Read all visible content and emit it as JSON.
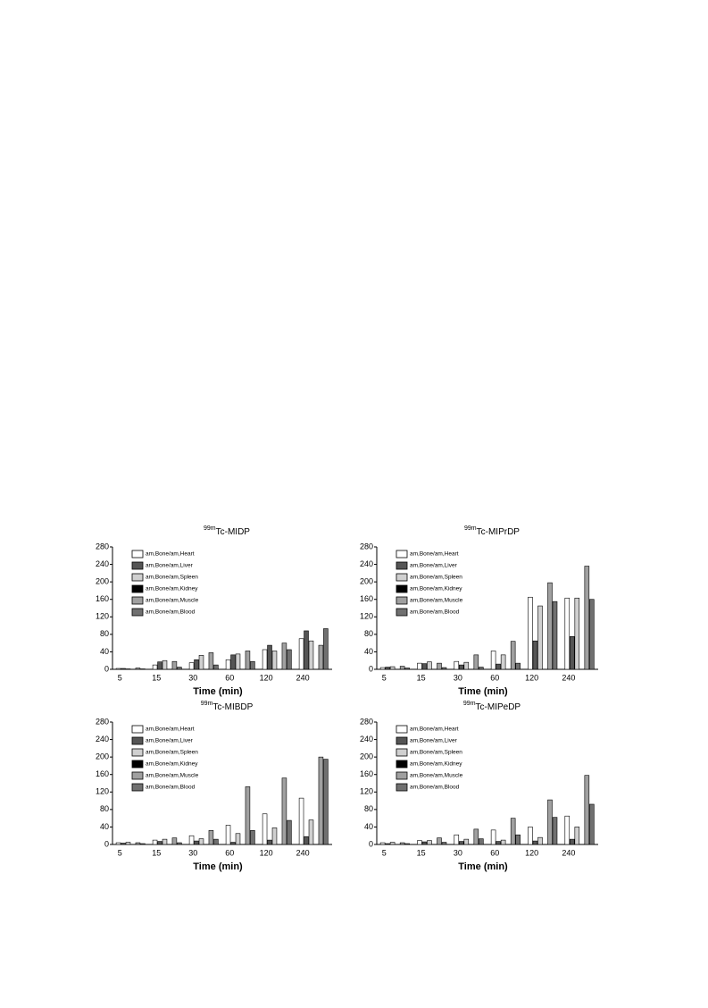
{
  "chart_data": [
    {
      "type": "bar",
      "title_sup": "99m",
      "title": "Tc-MIDP",
      "x_label": "Time (min)",
      "categories": [
        "5",
        "15",
        "30",
        "60",
        "120",
        "240"
      ],
      "ylim": [
        0,
        280
      ],
      "yticks": [
        0,
        40,
        80,
        120,
        160,
        200,
        240,
        280
      ],
      "series": [
        {
          "name": "am,Bone/am,Heart",
          "color": "#ffffff",
          "values": [
            2,
            10,
            15,
            22,
            45,
            70
          ]
        },
        {
          "name": "am,Bone/am,Liver",
          "color": "#555555",
          "values": [
            2,
            17,
            22,
            33,
            55,
            88
          ]
        },
        {
          "name": "am,Bone/am,Spleen",
          "color": "#d0d0d0",
          "values": [
            1,
            20,
            32,
            35,
            42,
            65
          ]
        },
        {
          "name": "am,Bone/am,Kidney",
          "color": "#000000",
          "values": [
            0,
            0,
            0,
            0,
            0,
            0
          ]
        },
        {
          "name": "am,Bone/am,Muscle",
          "color": "#a0a0a0",
          "values": [
            3,
            18,
            38,
            42,
            60,
            55
          ]
        },
        {
          "name": "am,Bone/am,Blood",
          "color": "#707070",
          "values": [
            1,
            5,
            10,
            18,
            45,
            93
          ]
        }
      ]
    },
    {
      "type": "bar",
      "title_sup": "99m",
      "title": "Tc-MIPrDP",
      "x_label": "Time (min)",
      "categories": [
        "5",
        "15",
        "30",
        "60",
        "120",
        "240"
      ],
      "ylim": [
        0,
        280
      ],
      "yticks": [
        0,
        40,
        80,
        120,
        160,
        200,
        240,
        280
      ],
      "series": [
        {
          "name": "am,Bone/am,Heart",
          "color": "#ffffff",
          "values": [
            4,
            14,
            18,
            42,
            165,
            163
          ]
        },
        {
          "name": "am,Bone/am,Liver",
          "color": "#555555",
          "values": [
            5,
            13,
            10,
            12,
            65,
            75
          ]
        },
        {
          "name": "am,Bone/am,Spleen",
          "color": "#d0d0d0",
          "values": [
            6,
            17,
            16,
            33,
            145,
            163
          ]
        },
        {
          "name": "am,Bone/am,Kidney",
          "color": "#000000",
          "values": [
            0,
            0,
            0,
            0,
            0,
            0
          ]
        },
        {
          "name": "am,Bone/am,Muscle",
          "color": "#a0a0a0",
          "values": [
            7,
            14,
            33,
            64,
            198,
            236
          ]
        },
        {
          "name": "am,Bone/am,Blood",
          "color": "#707070",
          "values": [
            3,
            4,
            5,
            14,
            155,
            160
          ]
        }
      ]
    },
    {
      "type": "bar",
      "title_sup": "99m",
      "title": "Tc-MIBDP",
      "x_label": "Time (min)",
      "categories": [
        "5",
        "15",
        "30",
        "60",
        "120",
        "240"
      ],
      "ylim": [
        0,
        280
      ],
      "yticks": [
        0,
        40,
        80,
        120,
        160,
        200,
        240,
        280
      ],
      "series": [
        {
          "name": "am,Bone/am,Heart",
          "color": "#ffffff",
          "values": [
            4,
            10,
            20,
            44,
            70,
            106
          ]
        },
        {
          "name": "am,Bone/am,Liver",
          "color": "#555555",
          "values": [
            3,
            7,
            8,
            5,
            10,
            18
          ]
        },
        {
          "name": "am,Bone/am,Spleen",
          "color": "#d0d0d0",
          "values": [
            5,
            12,
            13,
            25,
            38,
            56
          ]
        },
        {
          "name": "am,Bone/am,Kidney",
          "color": "#000000",
          "values": [
            0,
            0,
            0,
            0,
            0,
            0
          ]
        },
        {
          "name": "am,Bone/am,Muscle",
          "color": "#a0a0a0",
          "values": [
            4,
            15,
            32,
            132,
            152,
            200
          ]
        },
        {
          "name": "am,Bone/am,Blood",
          "color": "#707070",
          "values": [
            2,
            4,
            12,
            32,
            55,
            195
          ]
        }
      ]
    },
    {
      "type": "bar",
      "title_sup": "99m",
      "title": "Tc-MIPeDP",
      "x_label": "Time (min)",
      "categories": [
        "5",
        "15",
        "30",
        "60",
        "120",
        "240"
      ],
      "ylim": [
        0,
        280
      ],
      "yticks": [
        0,
        40,
        80,
        120,
        160,
        200,
        240,
        280
      ],
      "series": [
        {
          "name": "am,Bone/am,Heart",
          "color": "#ffffff",
          "values": [
            4,
            9,
            22,
            33,
            40,
            65
          ]
        },
        {
          "name": "am,Bone/am,Liver",
          "color": "#555555",
          "values": [
            2,
            6,
            7,
            7,
            8,
            12
          ]
        },
        {
          "name": "am,Bone/am,Spleen",
          "color": "#d0d0d0",
          "values": [
            5,
            9,
            12,
            10,
            16,
            40
          ]
        },
        {
          "name": "am,Bone/am,Kidney",
          "color": "#000000",
          "values": [
            0,
            0,
            0,
            0,
            0,
            0
          ]
        },
        {
          "name": "am,Bone/am,Muscle",
          "color": "#a0a0a0",
          "values": [
            4,
            15,
            35,
            60,
            102,
            158
          ]
        },
        {
          "name": "am,Bone/am,Blood",
          "color": "#707070",
          "values": [
            2,
            5,
            13,
            22,
            62,
            92
          ]
        }
      ]
    }
  ]
}
